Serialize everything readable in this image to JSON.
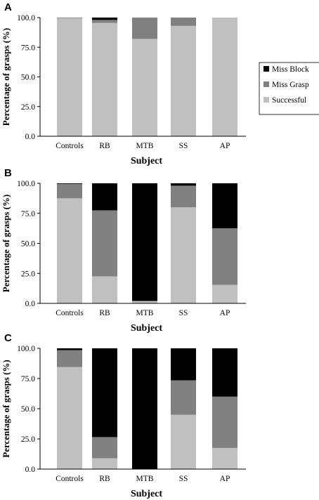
{
  "chart_data": [
    {
      "panel": "A",
      "type": "bar",
      "stacked": true,
      "categories": [
        "Controls",
        "RB",
        "MTB",
        "SS",
        "AP"
      ],
      "series": [
        {
          "name": "Successful",
          "color": "#c0c0c0",
          "values": [
            99.5,
            95.5,
            82,
            93,
            100
          ]
        },
        {
          "name": "Miss Grasp",
          "color": "#808080",
          "values": [
            0.5,
            2.5,
            18,
            7,
            0
          ]
        },
        {
          "name": "Miss Block",
          "color": "#000000",
          "values": [
            0,
            2,
            0,
            0,
            0
          ]
        }
      ],
      "xlabel": "Subject",
      "ylabel": "Percentage of grasps (%)",
      "yticks": [
        "0.0",
        "25.0",
        "50.0",
        "75.0",
        "100.0"
      ],
      "ylim": [
        0,
        100
      ],
      "legend": [
        "Miss Block",
        "Miss Grasp",
        "Successful"
      ],
      "legend_placement": "right",
      "grid": false
    },
    {
      "panel": "B",
      "type": "bar",
      "stacked": true,
      "categories": [
        "Controls",
        "RB",
        "MTB",
        "SS",
        "AP"
      ],
      "series": [
        {
          "name": "Successful",
          "color": "#c0c0c0",
          "values": [
            87.5,
            22.5,
            2,
            80,
            15.5
          ]
        },
        {
          "name": "Miss Grasp",
          "color": "#808080",
          "values": [
            12,
            55,
            0,
            18,
            47
          ]
        },
        {
          "name": "Miss Block",
          "color": "#000000",
          "values": [
            0.5,
            22.5,
            98,
            2,
            37.5
          ]
        }
      ],
      "xlabel": "Subject",
      "ylabel": "Percentage of grasps (%)",
      "yticks": [
        "0.0",
        "25.0",
        "50.0",
        "75.0",
        "100.0"
      ],
      "ylim": [
        0,
        100
      ],
      "grid": false
    },
    {
      "panel": "C",
      "type": "bar",
      "stacked": true,
      "categories": [
        "Controls",
        "RB",
        "MTB",
        "SS",
        "AP"
      ],
      "series": [
        {
          "name": "Successful",
          "color": "#c0c0c0",
          "values": [
            84.5,
            9,
            0,
            45,
            17.5
          ]
        },
        {
          "name": "Miss Grasp",
          "color": "#808080",
          "values": [
            14,
            17.5,
            0,
            28.5,
            42.5
          ]
        },
        {
          "name": "Miss Block",
          "color": "#000000",
          "values": [
            1.5,
            73.5,
            100,
            26.5,
            40
          ]
        }
      ],
      "xlabel": "Subject",
      "ylabel": "Percentage of grasps (%)",
      "yticks": [
        "0.0",
        "25.0",
        "50.0",
        "75.0",
        "100.0"
      ],
      "ylim": [
        0,
        100
      ],
      "grid": false
    }
  ]
}
